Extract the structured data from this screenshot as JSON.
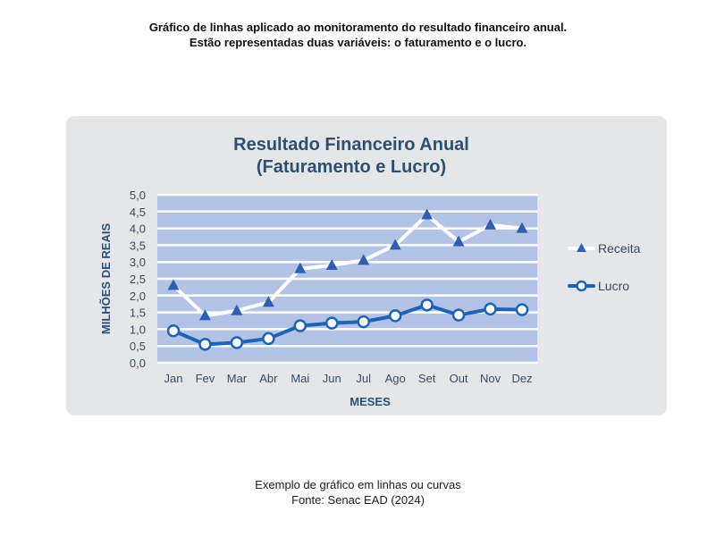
{
  "page": {
    "intro_line1": "Gráfico de linhas aplicado ao monitoramento do resultado financeiro anual.",
    "intro_line2": "Estão representadas duas variáveis: o faturamento e o lucro.",
    "footer_line1": "Exemplo de gráfico em linhas ou curvas",
    "footer_line2": "Fonte: Senac EAD (2024)"
  },
  "chart_data": {
    "type": "line",
    "title_line1": "Resultado Financeiro Anual",
    "title_line2": "(Faturamento e Lucro)",
    "xlabel": "MESES",
    "ylabel": "MILHÕES DE REAIS",
    "categories": [
      "Jan",
      "Fev",
      "Mar",
      "Abr",
      "Mai",
      "Jun",
      "Jul",
      "Ago",
      "Set",
      "Out",
      "Nov",
      "Dez"
    ],
    "yticks": [
      "0,0",
      "0,5",
      "1,0",
      "1,5",
      "2,0",
      "2,5",
      "3,0",
      "3,5",
      "4,0",
      "4,5",
      "5,0"
    ],
    "ylim": [
      0,
      5
    ],
    "grid": true,
    "legend_position": "right",
    "series": [
      {
        "name": "Receita",
        "marker": "triangle",
        "line_color": "#ffffff",
        "marker_color": "#2f5fb3",
        "values": [
          2.3,
          1.4,
          1.55,
          1.8,
          2.8,
          2.9,
          3.05,
          3.5,
          4.4,
          3.6,
          4.1,
          4.0
        ]
      },
      {
        "name": "Lucro",
        "marker": "circle",
        "line_color": "#1f63b6",
        "marker_color": "#ffffff",
        "values": [
          0.95,
          0.55,
          0.6,
          0.72,
          1.1,
          1.18,
          1.22,
          1.4,
          1.72,
          1.42,
          1.6,
          1.58
        ]
      }
    ],
    "colors": {
      "plot_background": "#b3c3e6",
      "grid": "#ffffff",
      "title": "#2c4f73",
      "axis_text": "#3c4b5e"
    }
  }
}
